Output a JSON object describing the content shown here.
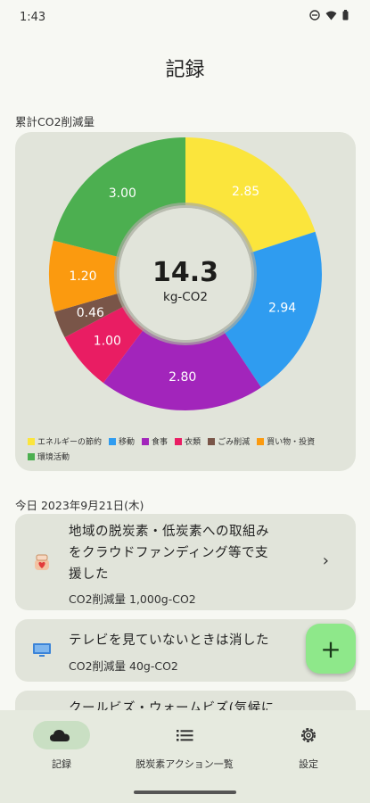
{
  "status": {
    "time": "1:43"
  },
  "page_title": "記録",
  "cumulative_label": "累計CO2削減量",
  "chart_center": {
    "value": "14.3",
    "unit": "kg-CO2"
  },
  "chart_data": {
    "type": "pie",
    "categories": [
      "エネルギーの節約",
      "移動",
      "食事",
      "衣類",
      "ごみ削減",
      "買い物・投資",
      "環境活動"
    ],
    "values": [
      2.85,
      2.94,
      2.8,
      1.0,
      0.46,
      1.2,
      3.0
    ],
    "labels": [
      "2.85",
      "2.94",
      "2.80",
      "1.00",
      "0.46",
      "1.20",
      "3.00"
    ],
    "colors": [
      "#fbe53c",
      "#2f9cf0",
      "#a225bb",
      "#e91d63",
      "#795548",
      "#fb9a0f",
      "#4caf50"
    ],
    "legend_position": "bottom"
  },
  "date_label": "今日 2023年9月21日(木)",
  "actions": [
    {
      "title_lines": [
        "地域の脱炭素・低炭素への取組み",
        "をクラウドファンディング等で支",
        "援した"
      ],
      "sub": "CO2削減量 1,000g-CO2",
      "chevron": "›"
    },
    {
      "title_lines": [
        "テレビを見ていないときは消した"
      ],
      "sub": "CO2削減量 40g-CO2"
    },
    {
      "title_lines": [
        "クールビズ・ウォームビズ(気候に"
      ]
    }
  ],
  "fab_label": "+",
  "nav": [
    {
      "label": "記録",
      "icon": "cloud-icon",
      "active": true
    },
    {
      "label": "脱炭素アクション一覧",
      "icon": "list-icon",
      "active": false
    },
    {
      "label": "設定",
      "icon": "gear-icon",
      "active": false
    }
  ]
}
